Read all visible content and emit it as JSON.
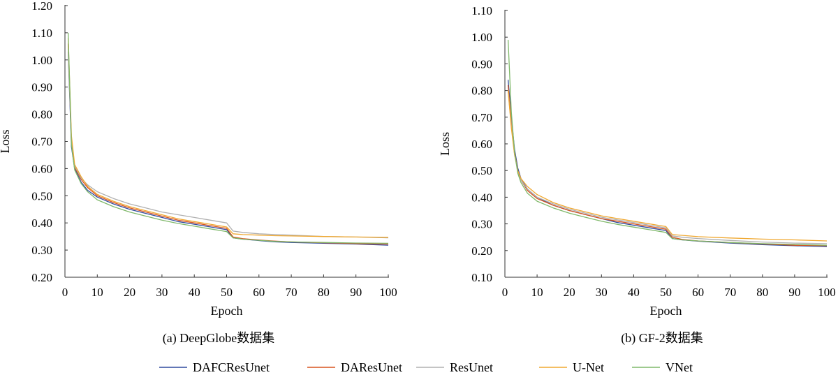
{
  "chart_data": [
    {
      "type": "line",
      "caption": "(a) DeepGlobe数据集",
      "xlabel": "Epoch",
      "ylabel": "Loss",
      "xlim": [
        0,
        100
      ],
      "ylim": [
        0.2,
        1.2
      ],
      "x_ticks": [
        0,
        10,
        20,
        30,
        40,
        50,
        60,
        70,
        80,
        90,
        100
      ],
      "y_ticks": [
        0.2,
        0.3,
        0.4,
        0.5,
        0.6,
        0.7,
        0.8,
        0.9,
        1.0,
        1.1,
        1.2
      ],
      "x_tick_labels": [
        "0",
        "10",
        "20",
        "30",
        "40",
        "50",
        "60",
        "70",
        "80",
        "90",
        "100"
      ],
      "y_tick_labels": [
        "0.20",
        "0.30",
        "0.40",
        "0.50",
        "0.60",
        "0.70",
        "0.80",
        "0.90",
        "1.00",
        "1.10",
        "1.20"
      ],
      "grid": false,
      "series": [
        {
          "name": "DAFCResUnet",
          "color": "#2e4a9e",
          "points": [
            [
              1,
              1.03
            ],
            [
              2,
              0.68
            ],
            [
              3,
              0.6
            ],
            [
              5,
              0.55
            ],
            [
              7,
              0.52
            ],
            [
              10,
              0.495
            ],
            [
              15,
              0.47
            ],
            [
              20,
              0.45
            ],
            [
              25,
              0.435
            ],
            [
              30,
              0.42
            ],
            [
              35,
              0.405
            ],
            [
              40,
              0.395
            ],
            [
              45,
              0.385
            ],
            [
              50,
              0.375
            ],
            [
              52,
              0.345
            ],
            [
              55,
              0.34
            ],
            [
              60,
              0.335
            ],
            [
              65,
              0.33
            ],
            [
              70,
              0.328
            ],
            [
              80,
              0.325
            ],
            [
              90,
              0.322
            ],
            [
              100,
              0.318
            ]
          ]
        },
        {
          "name": "DAResUnet",
          "color": "#d9541e",
          "points": [
            [
              1,
              1.06
            ],
            [
              2,
              0.7
            ],
            [
              3,
              0.605
            ],
            [
              5,
              0.56
            ],
            [
              7,
              0.53
            ],
            [
              10,
              0.5
            ],
            [
              15,
              0.475
            ],
            [
              20,
              0.455
            ],
            [
              25,
              0.44
            ],
            [
              30,
              0.425
            ],
            [
              35,
              0.41
            ],
            [
              40,
              0.4
            ],
            [
              45,
              0.39
            ],
            [
              50,
              0.38
            ],
            [
              52,
              0.348
            ],
            [
              55,
              0.342
            ],
            [
              60,
              0.337
            ],
            [
              65,
              0.333
            ],
            [
              70,
              0.33
            ],
            [
              80,
              0.327
            ],
            [
              90,
              0.324
            ],
            [
              100,
              0.322
            ]
          ]
        },
        {
          "name": "ResUnet",
          "color": "#b0b0b0",
          "points": [
            [
              1,
              1.04
            ],
            [
              2,
              0.7
            ],
            [
              3,
              0.61
            ],
            [
              5,
              0.565
            ],
            [
              7,
              0.54
            ],
            [
              10,
              0.515
            ],
            [
              15,
              0.49
            ],
            [
              20,
              0.47
            ],
            [
              25,
              0.455
            ],
            [
              30,
              0.44
            ],
            [
              35,
              0.43
            ],
            [
              40,
              0.42
            ],
            [
              45,
              0.41
            ],
            [
              50,
              0.4
            ],
            [
              52,
              0.37
            ],
            [
              55,
              0.365
            ],
            [
              60,
              0.36
            ],
            [
              65,
              0.357
            ],
            [
              70,
              0.355
            ],
            [
              80,
              0.35
            ],
            [
              90,
              0.348
            ],
            [
              100,
              0.345
            ]
          ]
        },
        {
          "name": "U-Net",
          "color": "#f0a830",
          "points": [
            [
              1,
              1.08
            ],
            [
              2,
              0.72
            ],
            [
              3,
              0.615
            ],
            [
              5,
              0.57
            ],
            [
              7,
              0.535
            ],
            [
              10,
              0.505
            ],
            [
              15,
              0.48
            ],
            [
              20,
              0.46
            ],
            [
              25,
              0.445
            ],
            [
              30,
              0.43
            ],
            [
              35,
              0.415
            ],
            [
              40,
              0.405
            ],
            [
              45,
              0.395
            ],
            [
              50,
              0.385
            ],
            [
              52,
              0.36
            ],
            [
              55,
              0.357
            ],
            [
              60,
              0.355
            ],
            [
              65,
              0.353
            ],
            [
              70,
              0.352
            ],
            [
              80,
              0.35
            ],
            [
              90,
              0.348
            ],
            [
              100,
              0.347
            ]
          ]
        },
        {
          "name": "VNet",
          "color": "#7fb86a",
          "points": [
            [
              1,
              1.1
            ],
            [
              2,
              0.69
            ],
            [
              3,
              0.595
            ],
            [
              5,
              0.545
            ],
            [
              7,
              0.515
            ],
            [
              10,
              0.485
            ],
            [
              15,
              0.46
            ],
            [
              20,
              0.44
            ],
            [
              25,
              0.425
            ],
            [
              30,
              0.41
            ],
            [
              35,
              0.398
            ],
            [
              40,
              0.388
            ],
            [
              45,
              0.378
            ],
            [
              50,
              0.368
            ],
            [
              52,
              0.345
            ],
            [
              55,
              0.34
            ],
            [
              60,
              0.336
            ],
            [
              65,
              0.332
            ],
            [
              70,
              0.33
            ],
            [
              80,
              0.328
            ],
            [
              90,
              0.326
            ],
            [
              100,
              0.325
            ]
          ]
        }
      ]
    },
    {
      "type": "line",
      "caption": "(b) GF-2数据集",
      "xlabel": "Epoch",
      "ylabel": "Loss",
      "xlim": [
        0,
        100
      ],
      "ylim": [
        0.1,
        1.1
      ],
      "x_ticks": [
        0,
        10,
        20,
        30,
        40,
        50,
        60,
        70,
        80,
        90,
        100
      ],
      "y_ticks": [
        0.1,
        0.2,
        0.3,
        0.4,
        0.5,
        0.6,
        0.7,
        0.8,
        0.9,
        1.0,
        1.1
      ],
      "x_tick_labels": [
        "0",
        "10",
        "20",
        "30",
        "40",
        "50",
        "60",
        "70",
        "80",
        "90",
        "100"
      ],
      "y_tick_labels": [
        "0.10",
        "0.20",
        "0.30",
        "0.40",
        "0.50",
        "0.60",
        "0.70",
        "0.80",
        "0.90",
        "1.00",
        "1.10"
      ],
      "grid": false,
      "series": [
        {
          "name": "DAFCResUnet",
          "color": "#2e4a9e",
          "points": [
            [
              1,
              0.84
            ],
            [
              2,
              0.7
            ],
            [
              3,
              0.58
            ],
            [
              4,
              0.51
            ],
            [
              5,
              0.47
            ],
            [
              7,
              0.43
            ],
            [
              10,
              0.4
            ],
            [
              15,
              0.37
            ],
            [
              20,
              0.35
            ],
            [
              25,
              0.335
            ],
            [
              30,
              0.32
            ],
            [
              35,
              0.305
            ],
            [
              40,
              0.295
            ],
            [
              45,
              0.285
            ],
            [
              50,
              0.275
            ],
            [
              52,
              0.245
            ],
            [
              55,
              0.24
            ],
            [
              60,
              0.235
            ],
            [
              70,
              0.228
            ],
            [
              80,
              0.222
            ],
            [
              90,
              0.218
            ],
            [
              100,
              0.215
            ]
          ]
        },
        {
          "name": "DAResUnet",
          "color": "#d9541e",
          "points": [
            [
              1,
              0.82
            ],
            [
              2,
              0.68
            ],
            [
              3,
              0.57
            ],
            [
              4,
              0.5
            ],
            [
              5,
              0.465
            ],
            [
              7,
              0.425
            ],
            [
              10,
              0.395
            ],
            [
              15,
              0.37
            ],
            [
              20,
              0.35
            ],
            [
              25,
              0.335
            ],
            [
              30,
              0.32
            ],
            [
              35,
              0.31
            ],
            [
              40,
              0.3
            ],
            [
              45,
              0.29
            ],
            [
              50,
              0.28
            ],
            [
              52,
              0.25
            ],
            [
              55,
              0.242
            ],
            [
              60,
              0.236
            ],
            [
              70,
              0.23
            ],
            [
              80,
              0.225
            ],
            [
              90,
              0.22
            ],
            [
              100,
              0.218
            ]
          ]
        },
        {
          "name": "ResUnet",
          "color": "#b0b0b0",
          "points": [
            [
              1,
              0.8
            ],
            [
              2,
              0.67
            ],
            [
              3,
              0.56
            ],
            [
              4,
              0.5
            ],
            [
              5,
              0.465
            ],
            [
              7,
              0.43
            ],
            [
              10,
              0.4
            ],
            [
              15,
              0.375
            ],
            [
              20,
              0.355
            ],
            [
              25,
              0.34
            ],
            [
              30,
              0.325
            ],
            [
              35,
              0.315
            ],
            [
              40,
              0.305
            ],
            [
              45,
              0.295
            ],
            [
              50,
              0.285
            ],
            [
              52,
              0.255
            ],
            [
              55,
              0.25
            ],
            [
              60,
              0.245
            ],
            [
              70,
              0.238
            ],
            [
              80,
              0.232
            ],
            [
              90,
              0.228
            ],
            [
              100,
              0.226
            ]
          ]
        },
        {
          "name": "U-Net",
          "color": "#f0a830",
          "points": [
            [
              1,
              0.8
            ],
            [
              2,
              0.66
            ],
            [
              3,
              0.56
            ],
            [
              4,
              0.5
            ],
            [
              5,
              0.47
            ],
            [
              7,
              0.44
            ],
            [
              10,
              0.41
            ],
            [
              15,
              0.38
            ],
            [
              20,
              0.36
            ],
            [
              25,
              0.345
            ],
            [
              30,
              0.33
            ],
            [
              35,
              0.32
            ],
            [
              40,
              0.31
            ],
            [
              45,
              0.3
            ],
            [
              50,
              0.29
            ],
            [
              52,
              0.26
            ],
            [
              55,
              0.257
            ],
            [
              60,
              0.252
            ],
            [
              70,
              0.247
            ],
            [
              80,
              0.243
            ],
            [
              90,
              0.24
            ],
            [
              100,
              0.236
            ]
          ]
        },
        {
          "name": "VNet",
          "color": "#7fb86a",
          "points": [
            [
              1,
              0.99
            ],
            [
              2,
              0.72
            ],
            [
              3,
              0.57
            ],
            [
              4,
              0.49
            ],
            [
              5,
              0.455
            ],
            [
              7,
              0.415
            ],
            [
              10,
              0.385
            ],
            [
              15,
              0.36
            ],
            [
              20,
              0.34
            ],
            [
              25,
              0.325
            ],
            [
              30,
              0.31
            ],
            [
              35,
              0.298
            ],
            [
              40,
              0.288
            ],
            [
              45,
              0.278
            ],
            [
              50,
              0.268
            ],
            [
              52,
              0.245
            ],
            [
              55,
              0.24
            ],
            [
              60,
              0.236
            ],
            [
              70,
              0.23
            ],
            [
              80,
              0.226
            ],
            [
              90,
              0.223
            ],
            [
              100,
              0.22
            ]
          ]
        }
      ]
    }
  ],
  "legend": {
    "placement": "bottom",
    "entries": [
      {
        "name": "DAFCResUnet",
        "color": "#2e4a9e"
      },
      {
        "name": "DAResUnet",
        "color": "#d9541e"
      },
      {
        "name": "ResUnet",
        "color": "#b0b0b0"
      },
      {
        "name": "U-Net",
        "color": "#f0a830"
      },
      {
        "name": "VNet",
        "color": "#7fb86a"
      }
    ]
  }
}
